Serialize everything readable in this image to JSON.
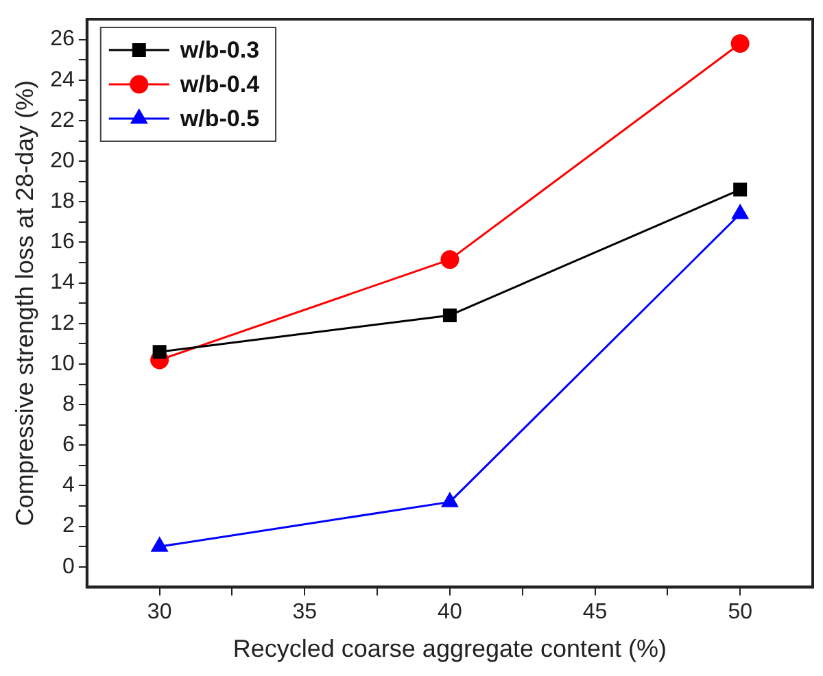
{
  "chart_data": {
    "type": "line",
    "xlabel": "Recycled coarse aggregate content (%)",
    "ylabel": "Compressive strength loss at 28-day (%)",
    "x": [
      30,
      40,
      50
    ],
    "series": [
      {
        "name": "w/b-0.3",
        "color": "#000000",
        "marker": "square",
        "values": [
          10.6,
          12.4,
          18.6
        ]
      },
      {
        "name": "w/b-0.4",
        "color": "#ff0000",
        "marker": "circle",
        "values": [
          10.2,
          15.15,
          25.8
        ]
      },
      {
        "name": "w/b-0.5",
        "color": "#0000ff",
        "marker": "triangle",
        "values": [
          1.0,
          3.2,
          17.4
        ]
      }
    ],
    "xlim": [
      27.5,
      52.5
    ],
    "xticks": [
      30,
      {
        "value": 32.5,
        "label": null
      },
      35,
      {
        "value": 37.5,
        "label": null
      },
      40,
      {
        "value": 42.5,
        "label": null
      },
      45,
      {
        "value": 47.5,
        "label": null
      },
      50
    ],
    "ylim": [
      -1,
      27
    ],
    "yticks": [
      0,
      {
        "value": 1,
        "label": null
      },
      2,
      {
        "value": 3,
        "label": null
      },
      4,
      {
        "value": 5,
        "label": null
      },
      6,
      {
        "value": 7,
        "label": null
      },
      8,
      {
        "value": 9,
        "label": null
      },
      10,
      {
        "value": 11,
        "label": null
      },
      12,
      {
        "value": 13,
        "label": null
      },
      14,
      {
        "value": 15,
        "label": null
      },
      16,
      {
        "value": 17,
        "label": null
      },
      18,
      {
        "value": 19,
        "label": null
      },
      20,
      {
        "value": 21,
        "label": null
      },
      22,
      {
        "value": 23,
        "label": null
      },
      24,
      {
        "value": 25,
        "label": null
      },
      26
    ],
    "grid": false,
    "legend": "top left",
    "line_style": "solid"
  }
}
